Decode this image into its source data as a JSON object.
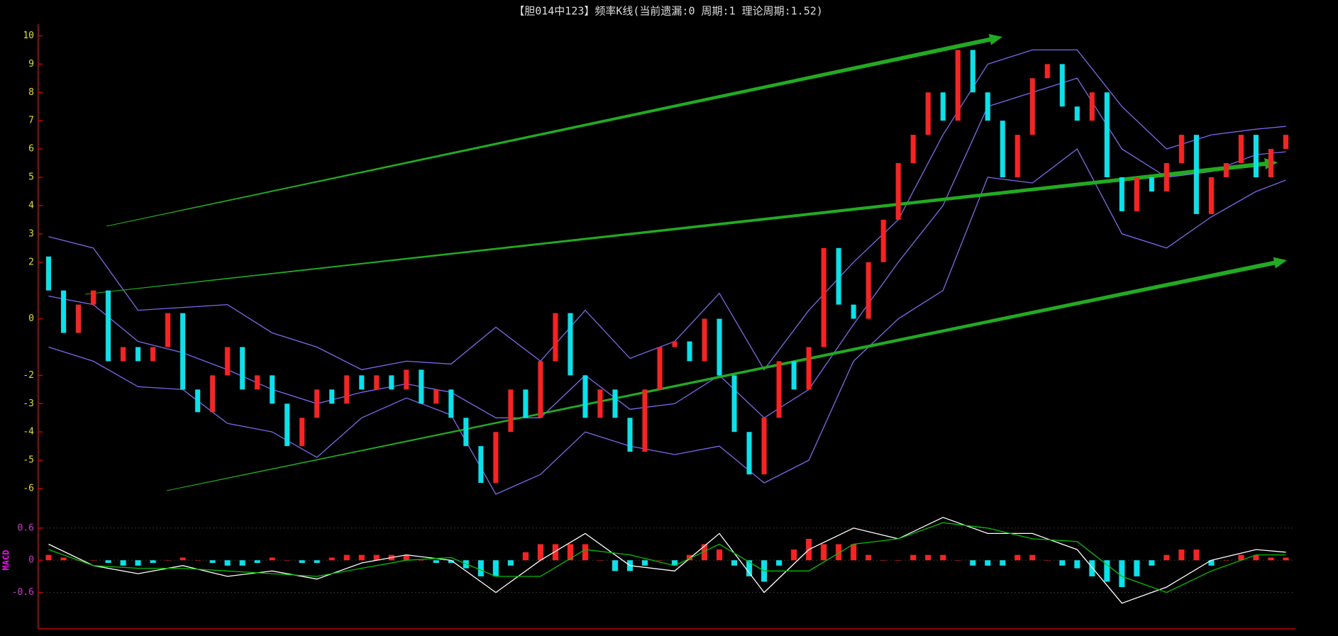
{
  "chart_data": [
    {
      "type": "candlestick",
      "title": "【胆014中123】频率K线(当前遗漏:0 周期:1 理论周期:1.52)",
      "ylim": [
        -6.4,
        10.4
      ],
      "yticks": [
        10,
        9,
        8,
        7,
        6,
        5,
        4,
        3,
        2,
        0,
        -2,
        -3,
        -4,
        -5,
        -6
      ],
      "up_color": "#ff2020",
      "down_color": "#00e5ee",
      "open": [
        2.2,
        1.0,
        -0.5,
        0.5,
        1.0,
        -1.5,
        -1.0,
        -1.5,
        -1.0,
        0.2,
        -2.5,
        -3.3,
        -2.0,
        -1.0,
        -2.5,
        -2.0,
        -3.0,
        -4.5,
        -3.5,
        -2.5,
        -3.0,
        -2.0,
        -2.5,
        -2.0,
        -2.5,
        -1.8,
        -3.0,
        -2.5,
        -3.5,
        -4.5,
        -5.8,
        -4.0,
        -2.5,
        -3.5,
        -1.5,
        0.2,
        -2.0,
        -3.5,
        -2.5,
        -3.5,
        -4.7,
        -2.5,
        -1.0,
        -0.8,
        -1.5,
        0.0,
        -2.0,
        -4.0,
        -5.5,
        -3.5,
        -1.5,
        -2.5,
        -1.0,
        2.5,
        0.5,
        0.0,
        2.0,
        3.5,
        5.5,
        6.5,
        8.0,
        7.0,
        9.5,
        8.0,
        7.0,
        5.0,
        6.5,
        8.5,
        9.0,
        7.5,
        7.0,
        8.0,
        5.0,
        3.8,
        5.0,
        4.5,
        5.5,
        6.5,
        3.7,
        5.0,
        5.5,
        6.5,
        5.0,
        6.0
      ],
      "close": [
        1.0,
        -0.5,
        0.5,
        1.0,
        -1.5,
        -1.0,
        -1.5,
        -1.0,
        0.2,
        -2.5,
        -3.3,
        -2.0,
        -1.0,
        -2.5,
        -2.0,
        -3.0,
        -4.5,
        -3.5,
        -2.5,
        -3.0,
        -2.0,
        -2.5,
        -2.0,
        -2.5,
        -1.8,
        -3.0,
        -2.5,
        -3.5,
        -4.5,
        -5.8,
        -4.0,
        -2.5,
        -3.5,
        -1.5,
        0.2,
        -2.0,
        -3.5,
        -2.5,
        -3.5,
        -4.7,
        -2.5,
        -1.0,
        -0.8,
        -1.5,
        0.0,
        -2.0,
        -4.0,
        -5.5,
        -3.5,
        -1.5,
        -2.5,
        -1.0,
        2.5,
        0.5,
        0.0,
        2.0,
        3.5,
        5.5,
        6.5,
        8.0,
        7.0,
        9.5,
        8.0,
        7.0,
        5.0,
        6.5,
        8.5,
        9.0,
        7.5,
        7.0,
        8.0,
        5.0,
        3.8,
        5.0,
        4.5,
        5.5,
        6.5,
        3.7,
        5.0,
        5.5,
        6.5,
        5.0,
        6.0,
        6.5
      ],
      "lines": {
        "x": [
          0,
          3,
          6,
          9,
          12,
          15,
          18,
          21,
          24,
          27,
          30,
          33,
          36,
          39,
          42,
          45,
          48,
          51,
          54,
          57,
          60,
          63,
          66,
          69,
          72,
          75,
          78,
          81,
          83
        ],
        "series": [
          {
            "color": "#7b68ee",
            "values": [
              2.9,
              2.5,
              0.3,
              0.4,
              0.5,
              -0.5,
              -1.0,
              -1.8,
              -1.5,
              -1.6,
              -0.3,
              -1.5,
              0.3,
              -1.4,
              -0.8,
              0.9,
              -1.8,
              0.3,
              2.0,
              3.5,
              6.5,
              9.0,
              9.5,
              9.5,
              7.5,
              6.0,
              6.5,
              6.7,
              6.8
            ]
          },
          {
            "color": "#7b68ee",
            "values": [
              0.8,
              0.5,
              -0.8,
              -1.2,
              -1.8,
              -2.5,
              -3.0,
              -2.6,
              -2.3,
              -2.6,
              -3.5,
              -3.5,
              -2.0,
              -3.2,
              -3.0,
              -2.0,
              -3.5,
              -2.5,
              -0.2,
              2.0,
              4.0,
              7.5,
              8.0,
              8.5,
              6.0,
              5.0,
              5.2,
              5.8,
              5.9
            ]
          },
          {
            "color": "#7b68ee",
            "values": [
              -1.0,
              -1.5,
              -2.4,
              -2.5,
              -3.7,
              -4.0,
              -4.9,
              -3.5,
              -2.8,
              -3.4,
              -6.2,
              -5.5,
              -4.0,
              -4.5,
              -4.8,
              -4.5,
              -5.8,
              -5.0,
              -1.5,
              0.0,
              1.0,
              5.0,
              4.8,
              6.0,
              3.0,
              2.5,
              3.6,
              4.5,
              4.9
            ]
          }
        ]
      }
    },
    {
      "type": "macd",
      "label": "MACD",
      "ylim": [
        -1.28,
        1.06
      ],
      "yticks": [
        0.6,
        0,
        -0.6
      ],
      "grid": true,
      "bars": {
        "up_color": "#ff2020",
        "down_color": "#00e5ee",
        "values": [
          0.1,
          0.05,
          0.0,
          0,
          -0.05,
          -0.1,
          -0.1,
          -0.05,
          0.0,
          0.05,
          0.0,
          -0.05,
          -0.1,
          -0.1,
          -0.05,
          0.05,
          0.0,
          -0.05,
          -0.05,
          0.05,
          0.1,
          0.1,
          0.1,
          0.1,
          0.1,
          0.0,
          -0.05,
          -0.05,
          -0.15,
          -0.3,
          -0.3,
          -0.1,
          0.15,
          0.3,
          0.3,
          0.3,
          0.3,
          0.0,
          -0.2,
          -0.2,
          -0.1,
          0.0,
          -0.1,
          0.1,
          0.3,
          0.2,
          -0.1,
          -0.3,
          -0.4,
          -0.1,
          0.2,
          0.4,
          0.3,
          0.3,
          0.3,
          0.1,
          0.0,
          0.0,
          0.1,
          0.1,
          0.1,
          0.0,
          -0.1,
          -0.1,
          -0.1,
          0.1,
          0.1,
          0.0,
          -0.1,
          -0.15,
          -0.3,
          -0.4,
          -0.5,
          -0.3,
          -0.1,
          0.1,
          0.2,
          0.2,
          -0.1,
          0.0,
          0.1,
          0.1,
          0.05,
          0.05
        ]
      },
      "lines": {
        "x": [
          0,
          3,
          6,
          9,
          12,
          15,
          18,
          21,
          24,
          27,
          30,
          33,
          36,
          39,
          42,
          45,
          48,
          51,
          54,
          57,
          60,
          63,
          66,
          69,
          72,
          75,
          78,
          81,
          83
        ],
        "series": [
          {
            "color": "#ffffff",
            "values": [
              0.3,
              -0.1,
              -0.25,
              -0.1,
              -0.3,
              -0.2,
              -0.35,
              -0.05,
              0.1,
              0.0,
              -0.6,
              0.0,
              0.5,
              -0.1,
              -0.2,
              0.5,
              -0.6,
              0.2,
              0.6,
              0.4,
              0.8,
              0.5,
              0.5,
              0.2,
              -0.8,
              -0.5,
              0.0,
              0.2,
              0.15
            ]
          },
          {
            "color": "#00c000",
            "values": [
              0.2,
              -0.1,
              -0.15,
              -0.15,
              -0.2,
              -0.25,
              -0.3,
              -0.15,
              0.0,
              0.05,
              -0.3,
              -0.3,
              0.2,
              0.1,
              -0.1,
              0.3,
              -0.2,
              -0.2,
              0.3,
              0.4,
              0.7,
              0.6,
              0.4,
              0.35,
              -0.3,
              -0.6,
              -0.2,
              0.1,
              0.1
            ]
          }
        ]
      }
    }
  ]
}
